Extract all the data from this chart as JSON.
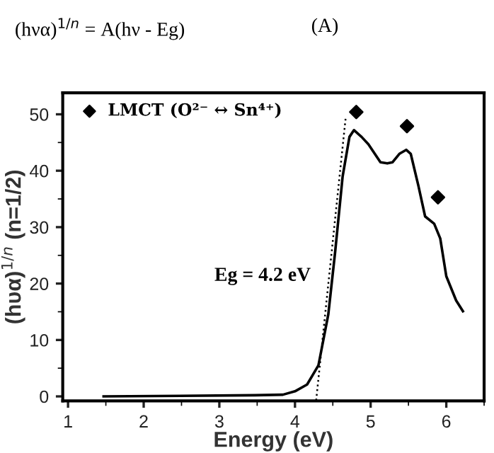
{
  "chart_data": {
    "type": "line",
    "title": "(hνα)$^{1/n}$ = A(hν - Eg)",
    "annotations": [
      "(A)",
      "Eg = 4.2 eV"
    ],
    "xlabel": "Energy (eV)",
    "ylabel": "(hυα)$^{1/n}$ (n=1/2)",
    "xlim": [
      0.93,
      6.5
    ],
    "ylim": [
      -0.8,
      53.8
    ],
    "xticks": [
      1,
      2,
      3,
      4,
      5,
      6
    ],
    "yticks": [
      0,
      10,
      20,
      30,
      40,
      50
    ],
    "grid": false,
    "legend": "top left",
    "series": [
      {
        "color": "#000000",
        "line_style": "solid",
        "marker": "none",
        "x": [
          1.47,
          3.47,
          3.84,
          4.0,
          4.16,
          4.31,
          4.44,
          4.53,
          4.63,
          4.72,
          4.78,
          4.88,
          4.97,
          5.13,
          5.22,
          5.29,
          5.38,
          5.47,
          5.53,
          5.63,
          5.72,
          5.84,
          5.92,
          6.0,
          6.13,
          6.22
        ],
        "values": [
          0,
          0.2,
          0.3,
          0.9,
          2.1,
          5.5,
          14.5,
          25.5,
          39,
          46,
          47.2,
          46,
          44.7,
          41.5,
          41.3,
          41.5,
          43,
          43.7,
          43,
          37.4,
          31.9,
          30.6,
          28,
          21.3,
          17,
          15.1
        ]
      },
      {
        "color": "#000000",
        "line_style": "dotted",
        "marker": "none",
        "x": [
          4.28,
          4.67
        ],
        "values": [
          -0.7,
          49.4
        ]
      },
      {
        "type": "scatter",
        "name": "LMCT (O²⁻ ↔ Sn⁴⁺)",
        "color": "#000000",
        "marker": "diamond",
        "x": [
          4.81,
          5.48,
          5.89
        ],
        "values": [
          50.4,
          47.9,
          35.3
        ]
      }
    ]
  }
}
